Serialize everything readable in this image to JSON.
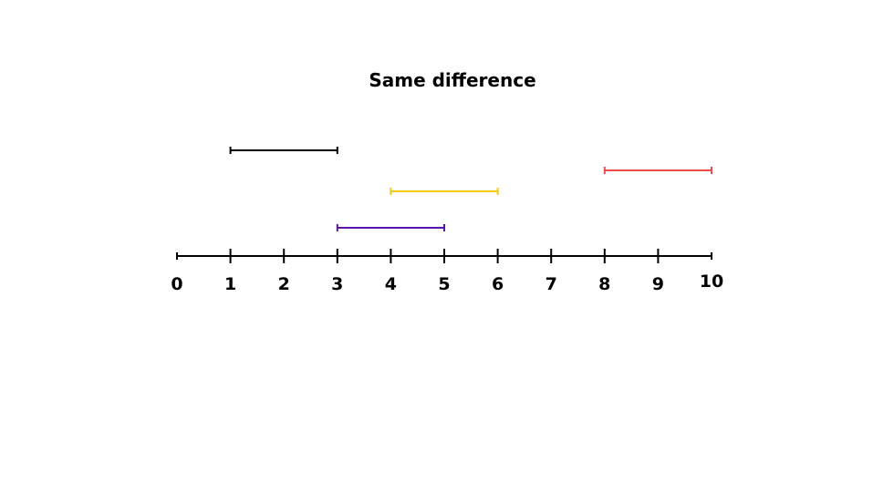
{
  "title": "Same difference",
  "number_line": {
    "min": 0,
    "max": 10,
    "ticks": [
      {
        "value": 0,
        "label": "0"
      },
      {
        "value": 1,
        "label": "1"
      },
      {
        "value": 2,
        "label": "2"
      },
      {
        "value": 3,
        "label": "3"
      },
      {
        "value": 4,
        "label": "4"
      },
      {
        "value": 5,
        "label": "5"
      },
      {
        "value": 6,
        "label": "6"
      },
      {
        "value": 7,
        "label": "7"
      },
      {
        "value": 8,
        "label": "8"
      },
      {
        "value": 9,
        "label": "9"
      },
      {
        "value": 10,
        "label": "10"
      }
    ],
    "color": "#000000"
  },
  "segments": [
    {
      "id": "black",
      "start": 1,
      "end": 3,
      "color": "#000000"
    },
    {
      "id": "red",
      "start": 8,
      "end": 10,
      "color": "#ee4b4b"
    },
    {
      "id": "yellow",
      "start": 4,
      "end": 6,
      "color": "#f2cc12"
    },
    {
      "id": "purple",
      "start": 3,
      "end": 5,
      "color": "#5b15ae"
    }
  ]
}
